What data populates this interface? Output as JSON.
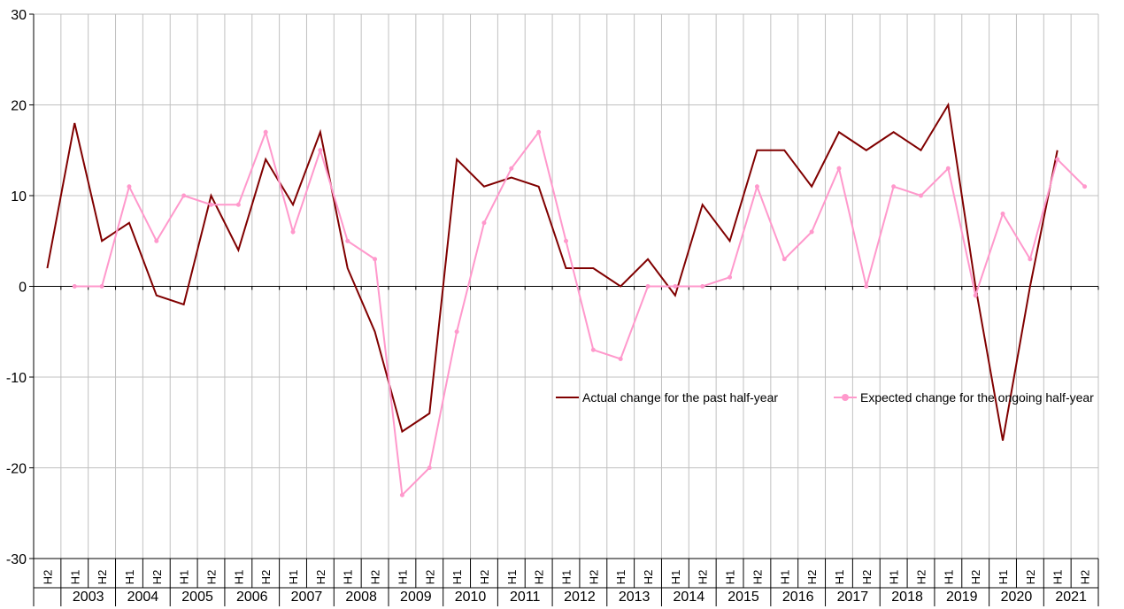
{
  "chart_data": {
    "type": "line",
    "x": [
      {
        "half": "H2",
        "year": ""
      },
      {
        "half": "H1",
        "year": "2003"
      },
      {
        "half": "H2",
        "year": "2003"
      },
      {
        "half": "H1",
        "year": "2004"
      },
      {
        "half": "H2",
        "year": "2004"
      },
      {
        "half": "H1",
        "year": "2005"
      },
      {
        "half": "H2",
        "year": "2005"
      },
      {
        "half": "H1",
        "year": "2006"
      },
      {
        "half": "H2",
        "year": "2006"
      },
      {
        "half": "H1",
        "year": "2007"
      },
      {
        "half": "H2",
        "year": "2007"
      },
      {
        "half": "H1",
        "year": "2008"
      },
      {
        "half": "H2",
        "year": "2008"
      },
      {
        "half": "H1",
        "year": "2009"
      },
      {
        "half": "H2",
        "year": "2009"
      },
      {
        "half": "H1",
        "year": "2010"
      },
      {
        "half": "H2",
        "year": "2010"
      },
      {
        "half": "H1",
        "year": "2011"
      },
      {
        "half": "H2",
        "year": "2011"
      },
      {
        "half": "H1",
        "year": "2012"
      },
      {
        "half": "H2",
        "year": "2012"
      },
      {
        "half": "H1",
        "year": "2013"
      },
      {
        "half": "H2",
        "year": "2013"
      },
      {
        "half": "H1",
        "year": "2014"
      },
      {
        "half": "H2",
        "year": "2014"
      },
      {
        "half": "H1",
        "year": "2015"
      },
      {
        "half": "H2",
        "year": "2015"
      },
      {
        "half": "H1",
        "year": "2016"
      },
      {
        "half": "H2",
        "year": "2016"
      },
      {
        "half": "H1",
        "year": "2017"
      },
      {
        "half": "H2",
        "year": "2017"
      },
      {
        "half": "H1",
        "year": "2018"
      },
      {
        "half": "H2",
        "year": "2018"
      },
      {
        "half": "H1",
        "year": "2019"
      },
      {
        "half": "H2",
        "year": "2019"
      },
      {
        "half": "H1",
        "year": "2020"
      },
      {
        "half": "H2",
        "year": "2020"
      },
      {
        "half": "H1",
        "year": "2021"
      },
      {
        "half": "H2",
        "year": "2021"
      }
    ],
    "years": [
      "2003",
      "2004",
      "2005",
      "2006",
      "2007",
      "2008",
      "2009",
      "2010",
      "2011",
      "2012",
      "2013",
      "2014",
      "2015",
      "2016",
      "2017",
      "2018",
      "2019",
      "2020",
      "2021"
    ],
    "series": [
      {
        "name": "Actual change for the past half-year",
        "color": "#800000",
        "markers": false,
        "values": [
          2,
          18,
          5,
          7,
          -1,
          -2,
          10,
          4,
          14,
          9,
          17,
          2,
          -5,
          -16,
          -14,
          14,
          11,
          12,
          11,
          2,
          2,
          0,
          3,
          -1,
          9,
          5,
          15,
          15,
          11,
          17,
          15,
          17,
          15,
          20,
          0,
          -17,
          0,
          15,
          null
        ]
      },
      {
        "name": "Expected change for the ongoing half-year",
        "color": "#ff99cc",
        "markers": true,
        "values": [
          null,
          0,
          0,
          11,
          5,
          10,
          9,
          9,
          17,
          6,
          15,
          5,
          3,
          -23,
          -20,
          -5,
          7,
          13,
          17,
          5,
          -7,
          -8,
          0,
          0,
          0,
          1,
          11,
          3,
          6,
          13,
          0,
          11,
          10,
          13,
          -1,
          8,
          3,
          14,
          11
        ]
      }
    ],
    "ylim": [
      -30,
      30
    ],
    "yticks": [
      "30",
      "20",
      "10",
      "0",
      "-10",
      "-20",
      "-30"
    ],
    "grid": true,
    "legend_position": "middle-right",
    "title": "",
    "xlabel": "",
    "ylabel": ""
  }
}
